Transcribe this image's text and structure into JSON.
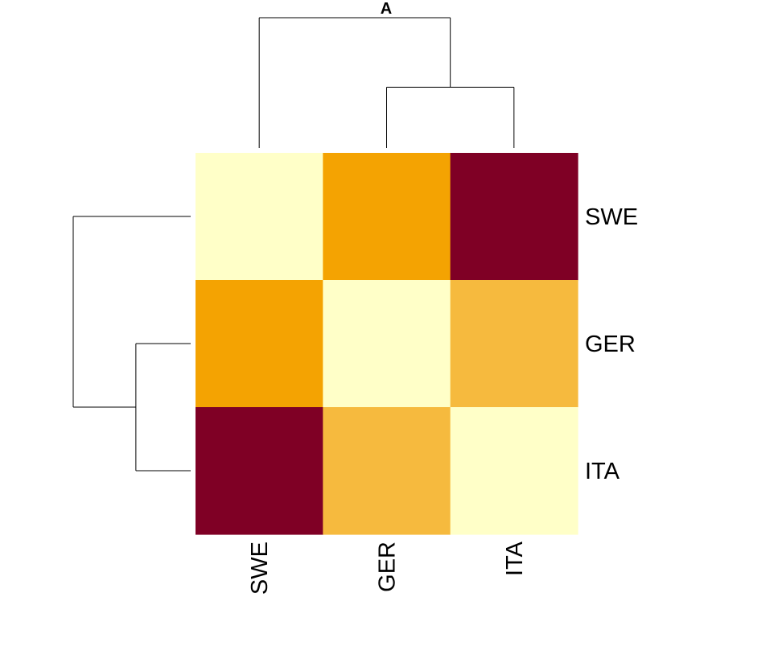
{
  "chart_data": {
    "type": "heatmap",
    "title": "A",
    "rows": [
      "SWE",
      "GER",
      "ITA"
    ],
    "columns": [
      "SWE",
      "GER",
      "ITA"
    ],
    "values": [
      [
        0.0,
        0.5,
        1.0
      ],
      [
        0.5,
        0.0,
        0.35
      ],
      [
        1.0,
        0.35,
        0.0
      ]
    ],
    "color_scale": [
      "#FFFFC8",
      "#F6BA3E",
      "#F4A302",
      "#7F0025"
    ],
    "cell_colors": [
      [
        "#FFFFC8",
        "#F4A302",
        "#7F0025"
      ],
      [
        "#F4A302",
        "#FFFFC8",
        "#F6BA3E"
      ],
      [
        "#7F0025",
        "#F6BA3E",
        "#FFFFC8"
      ]
    ],
    "dendrogram": {
      "merges": [
        {
          "members": [
            "GER",
            "ITA"
          ],
          "height": 0.35
        },
        {
          "members": [
            "SWE",
            "GER-ITA"
          ],
          "height": 0.75
        }
      ],
      "max_height": 0.75
    }
  }
}
